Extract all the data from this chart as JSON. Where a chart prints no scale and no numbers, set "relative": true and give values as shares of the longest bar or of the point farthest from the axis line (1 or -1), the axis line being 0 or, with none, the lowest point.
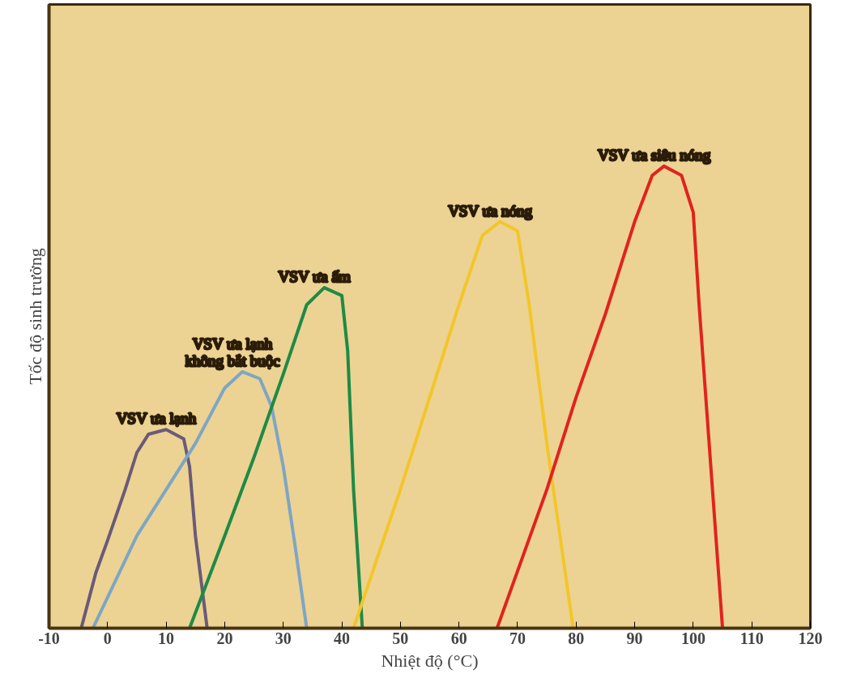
{
  "chart_data": {
    "type": "line",
    "relative": true,
    "xlabel": "Nhiệt độ (°C)",
    "ylabel": "Tốc độ sinh trưởng",
    "xlim": [
      -10,
      120
    ],
    "xticks": [
      -10,
      0,
      10,
      20,
      30,
      40,
      50,
      60,
      70,
      80,
      90,
      100,
      110,
      120
    ],
    "grid": false,
    "marker": "none",
    "line_style": "solid",
    "series": [
      {
        "name": "VSV ưa lạnh",
        "color": "#6b5a78",
        "x": [
          -4.5,
          -2,
          0,
          3,
          5,
          7,
          10,
          13,
          14,
          15,
          16,
          17
        ],
        "values": [
          0,
          0.12,
          0.19,
          0.3,
          0.38,
          0.42,
          0.43,
          0.41,
          0.35,
          0.2,
          0.1,
          0
        ]
      },
      {
        "name": "VSV ưa lạnh\nkhông bắt buộc",
        "color": "#7ea6c4",
        "x": [
          -2.5,
          5,
          10,
          15,
          20,
          23,
          26,
          28,
          30,
          32,
          34
        ],
        "values": [
          0,
          0.2,
          0.3,
          0.4,
          0.52,
          0.555,
          0.54,
          0.48,
          0.35,
          0.18,
          0
        ]
      },
      {
        "name": "VSV ưa ấm",
        "color": "#1f8a45",
        "x": [
          14,
          20,
          25,
          30,
          34,
          37,
          40,
          41,
          42,
          43.5
        ],
        "values": [
          0,
          0.2,
          0.37,
          0.55,
          0.7,
          0.737,
          0.72,
          0.6,
          0.3,
          0
        ]
      },
      {
        "name": "VSV ưa nóng",
        "color": "#f2c629",
        "x": [
          42,
          50,
          55,
          60,
          64,
          67,
          70,
          72,
          75,
          79.5
        ],
        "values": [
          0,
          0.3,
          0.5,
          0.7,
          0.85,
          0.88,
          0.86,
          0.7,
          0.4,
          0
        ]
      },
      {
        "name": "VSV ưa siêu nóng",
        "color": "#e0231f",
        "x": [
          66.5,
          75,
          80,
          85,
          90,
          93,
          95,
          98,
          100,
          101,
          103,
          105
        ],
        "values": [
          0,
          0.3,
          0.5,
          0.68,
          0.88,
          0.98,
          1,
          0.98,
          0.9,
          0.7,
          0.35,
          0
        ]
      }
    ]
  }
}
